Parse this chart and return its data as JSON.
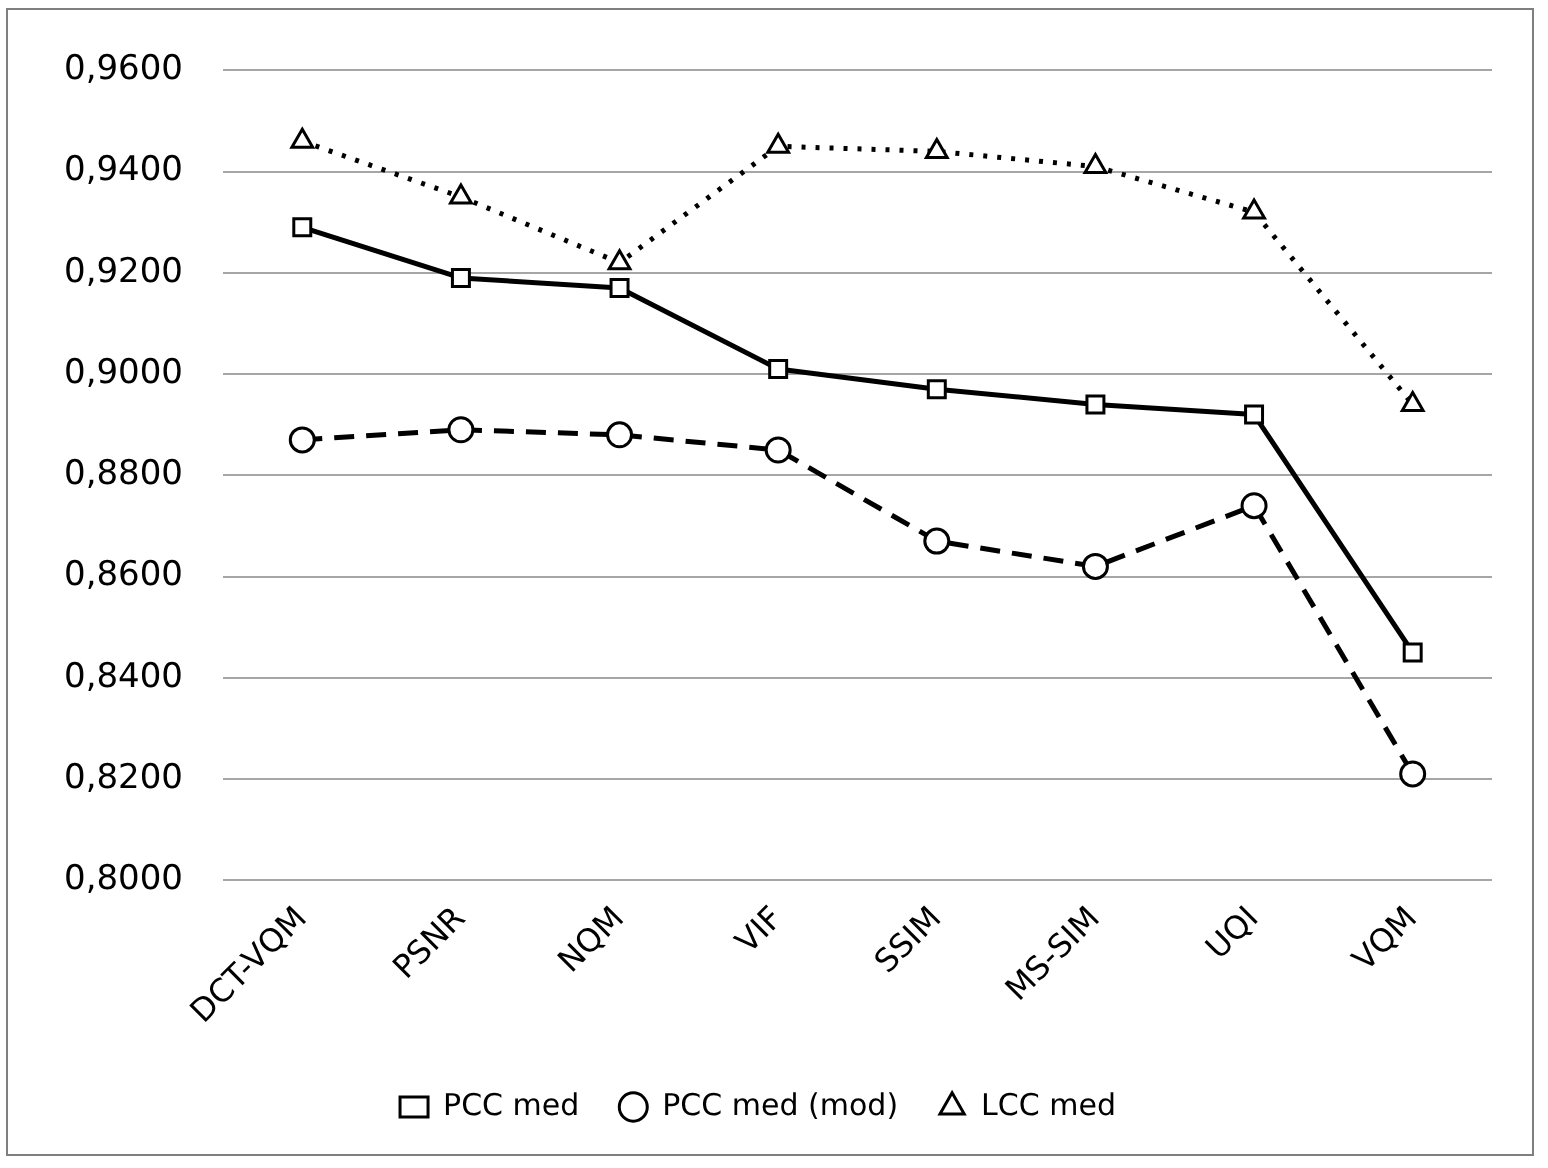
{
  "chart_data": {
    "type": "line",
    "categories": [
      "DCT-VQM",
      "PSNR",
      "NQM",
      "VIF",
      "SSIM",
      "MS-SIM",
      "UQI",
      "VQM"
    ],
    "series": [
      {
        "name": "PCC med",
        "color": "#000000",
        "marker": "square",
        "line_style": "solid",
        "values": [
          0.929,
          0.919,
          0.917,
          0.901,
          0.897,
          0.894,
          0.892,
          0.845
        ]
      },
      {
        "name": "PCC med (mod)",
        "color": "#000000",
        "marker": "circle",
        "line_style": "dashed",
        "values": [
          0.887,
          0.889,
          0.888,
          0.885,
          0.867,
          0.862,
          0.874,
          0.821
        ]
      },
      {
        "name": "LCC med",
        "color": "#000000",
        "marker": "triangle",
        "line_style": "dotted",
        "values": [
          0.946,
          0.935,
          0.922,
          0.945,
          0.944,
          0.941,
          0.932,
          0.894
        ]
      }
    ],
    "ylim": [
      0.8,
      0.96
    ],
    "yticks": [
      {
        "value": 0.8,
        "label": "0,8000"
      },
      {
        "value": 0.82,
        "label": "0,8200"
      },
      {
        "value": 0.84,
        "label": "0,8400"
      },
      {
        "value": 0.86,
        "label": "0,8600"
      },
      {
        "value": 0.88,
        "label": "0,8800"
      },
      {
        "value": 0.9,
        "label": "0,9000"
      },
      {
        "value": 0.92,
        "label": "0,9200"
      },
      {
        "value": 0.94,
        "label": "0,9400"
      },
      {
        "value": 0.96,
        "label": "0,9600"
      }
    ],
    "grid": "y",
    "legend": "bottom"
  }
}
